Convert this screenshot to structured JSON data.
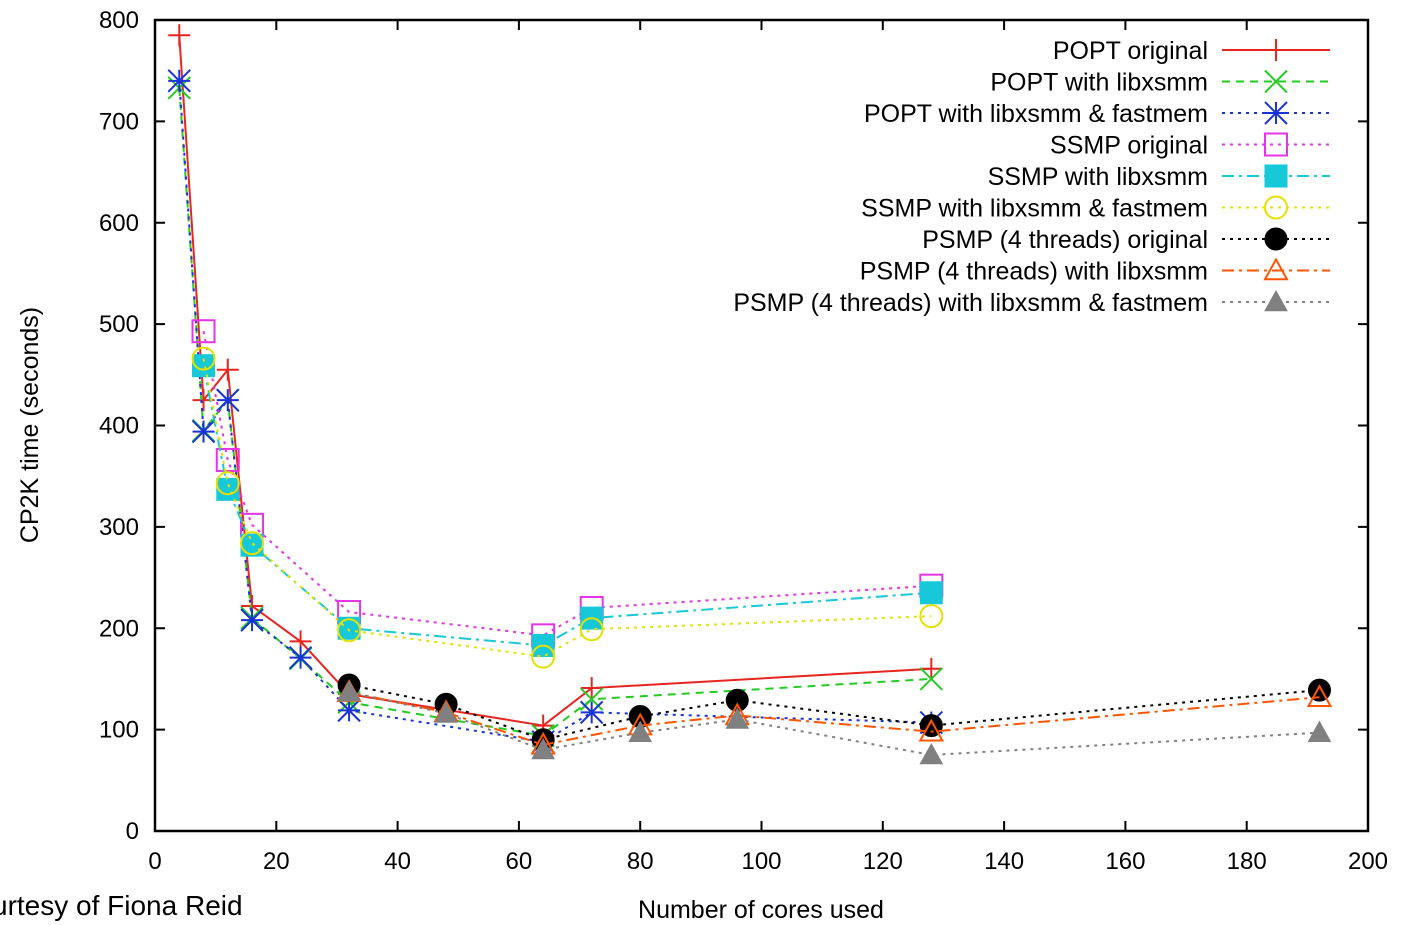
{
  "chart_data": {
    "type": "line",
    "title": "",
    "xlabel": "Number of cores used",
    "ylabel": "CP2K time (seconds)",
    "xlim": [
      0,
      200
    ],
    "ylim": [
      0,
      800
    ],
    "xticks": [
      0,
      20,
      40,
      60,
      80,
      100,
      120,
      140,
      160,
      180,
      200
    ],
    "yticks": [
      0,
      100,
      200,
      300,
      400,
      500,
      600,
      700,
      800
    ],
    "grid": false,
    "legend_position": "top-right",
    "series": [
      {
        "name": "POPT original",
        "color": "#e8251f",
        "dash": "solid",
        "marker": "plus",
        "x": [
          4,
          8,
          12,
          16,
          24,
          32,
          64,
          72,
          128
        ],
        "y": [
          785,
          425,
          455,
          222,
          187,
          135,
          104,
          141,
          160
        ]
      },
      {
        "name": "POPT with libxsmm",
        "color": "#22cc22",
        "dash": "dashed",
        "marker": "x",
        "x": [
          4,
          8,
          12,
          16,
          24,
          32,
          64,
          72,
          128
        ],
        "y": [
          733,
          395,
          425,
          210,
          170,
          127,
          94,
          130,
          150
        ]
      },
      {
        "name": "POPT with libxsmm & fastmem",
        "color": "#1a33d9",
        "dash": "dotted",
        "marker": "star",
        "x": [
          4,
          8,
          12,
          16,
          24,
          32,
          64,
          72,
          128
        ],
        "y": [
          740,
          394,
          425,
          208,
          171,
          119,
          88,
          117,
          107
        ]
      },
      {
        "name": "SSMP original",
        "color": "#e633e6",
        "dash": "dotted",
        "marker": "square-open",
        "x": [
          8,
          12,
          16,
          32,
          64,
          72,
          128
        ],
        "y": [
          493,
          366,
          302,
          216,
          193,
          220,
          242
        ]
      },
      {
        "name": "SSMP with libxsmm",
        "color": "#16c8d8",
        "dash": "dashdot",
        "marker": "square-filled",
        "x": [
          8,
          12,
          16,
          32,
          64,
          72,
          128
        ],
        "y": [
          459,
          337,
          282,
          200,
          183,
          210,
          235
        ]
      },
      {
        "name": "SSMP with libxsmm & fastmem",
        "color": "#e6e000",
        "dash": "dotted",
        "marker": "circle-open",
        "x": [
          8,
          12,
          16,
          32,
          64,
          72,
          128
        ],
        "y": [
          466,
          343,
          284,
          198,
          172,
          199,
          212
        ]
      },
      {
        "name": "PSMP (4 threads) original",
        "color": "#000000",
        "dash": "dotted",
        "marker": "circle-filled",
        "x": [
          32,
          48,
          64,
          80,
          96,
          128,
          192
        ],
        "y": [
          144,
          125,
          90,
          113,
          129,
          104,
          139
        ]
      },
      {
        "name": "PSMP (4 threads) with libxsmm",
        "color": "#ff5500",
        "dash": "dashdot",
        "marker": "triangle-open",
        "x": [
          32,
          48,
          64,
          80,
          96,
          128,
          192
        ],
        "y": [
          137,
          117,
          85,
          104,
          114,
          98,
          132
        ]
      },
      {
        "name": "PSMP (4 threads) with libxsmm & fastmem",
        "color": "#808080",
        "dash": "dotted",
        "marker": "triangle-filled",
        "x": [
          32,
          48,
          64,
          80,
          96,
          128,
          192
        ],
        "y": [
          137,
          116,
          80,
          97,
          110,
          75,
          97
        ]
      }
    ]
  },
  "credit": {
    "text": "urtesy of Fiona Reid"
  }
}
